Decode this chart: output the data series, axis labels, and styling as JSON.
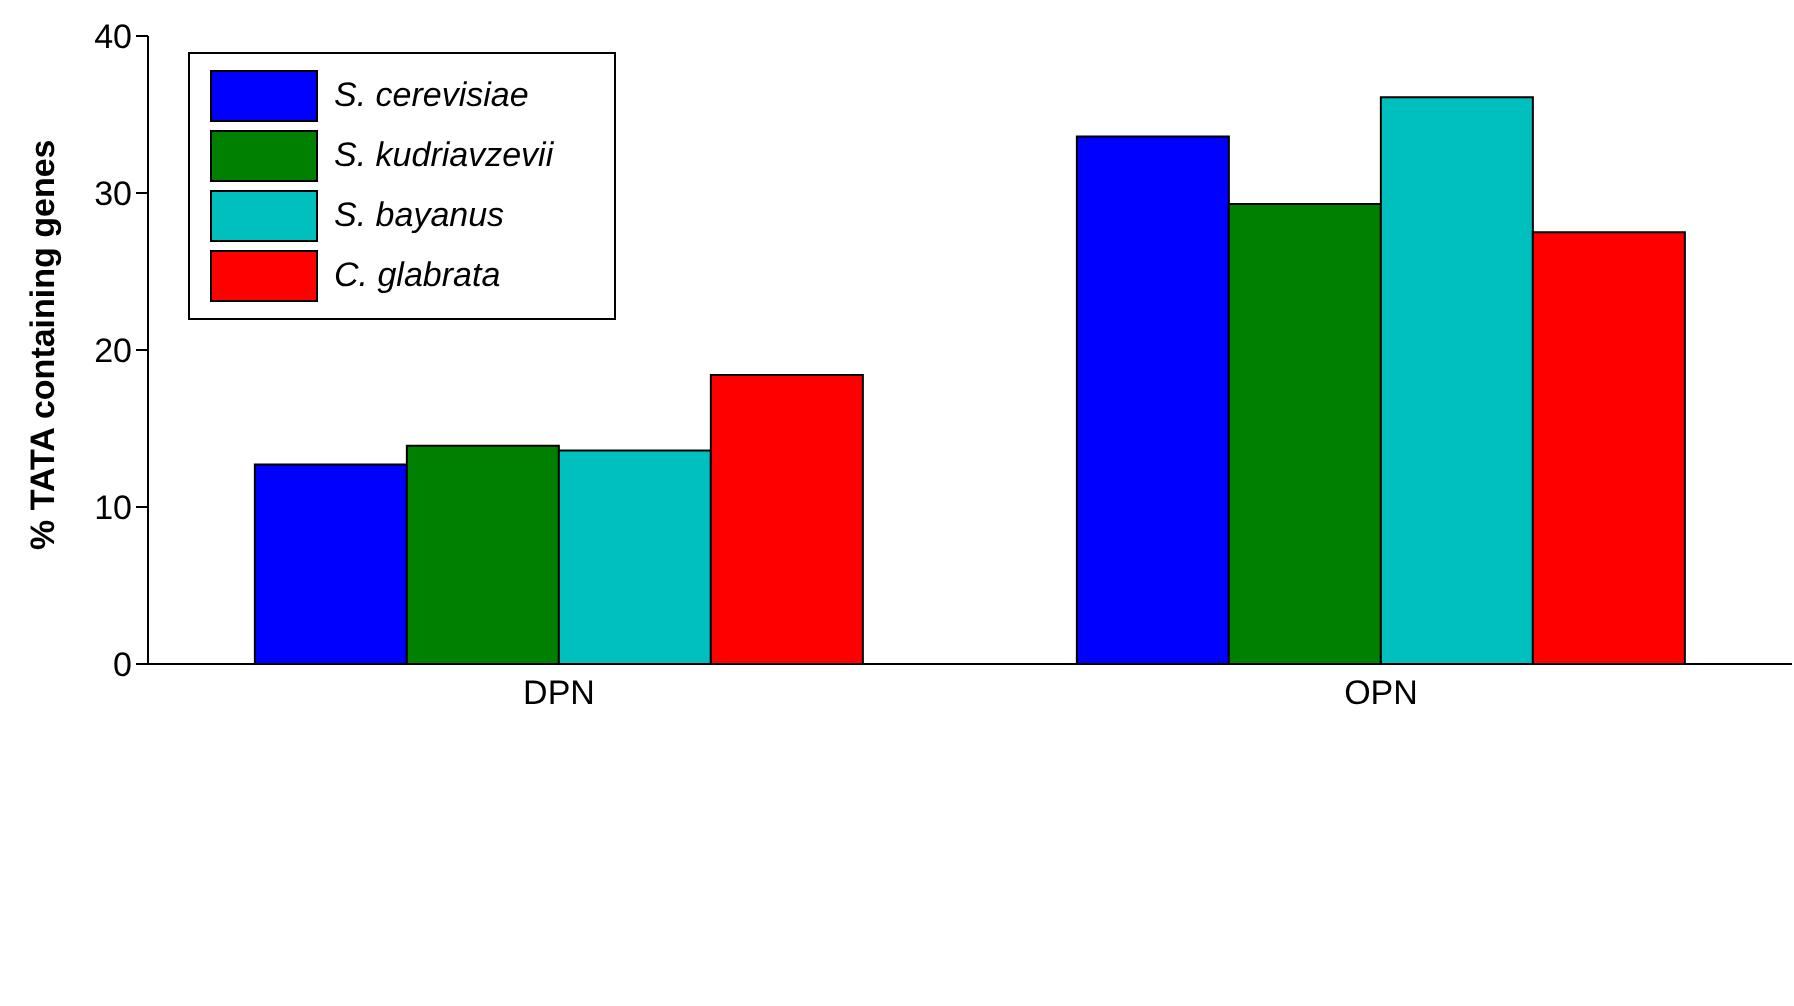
{
  "chart_data": {
    "type": "bar",
    "ylabel": "% TATA containing genes",
    "categories": [
      "DPN",
      "OPN"
    ],
    "series": [
      {
        "name": "S. cerevisiae",
        "color": "#0000ff",
        "values": [
          12.7,
          33.6
        ]
      },
      {
        "name": "S. kudriavzevii",
        "color": "#008000",
        "values": [
          13.9,
          29.3
        ]
      },
      {
        "name": "S. bayanus",
        "color": "#00bfbf",
        "values": [
          13.6,
          36.1
        ]
      },
      {
        "name": "C. glabrata",
        "color": "#ff0000",
        "values": [
          18.4,
          27.5
        ]
      }
    ],
    "ylim": [
      0,
      40
    ],
    "yticks": [
      0,
      10,
      20,
      30,
      40
    ],
    "legend": "top left",
    "grid": false
  }
}
